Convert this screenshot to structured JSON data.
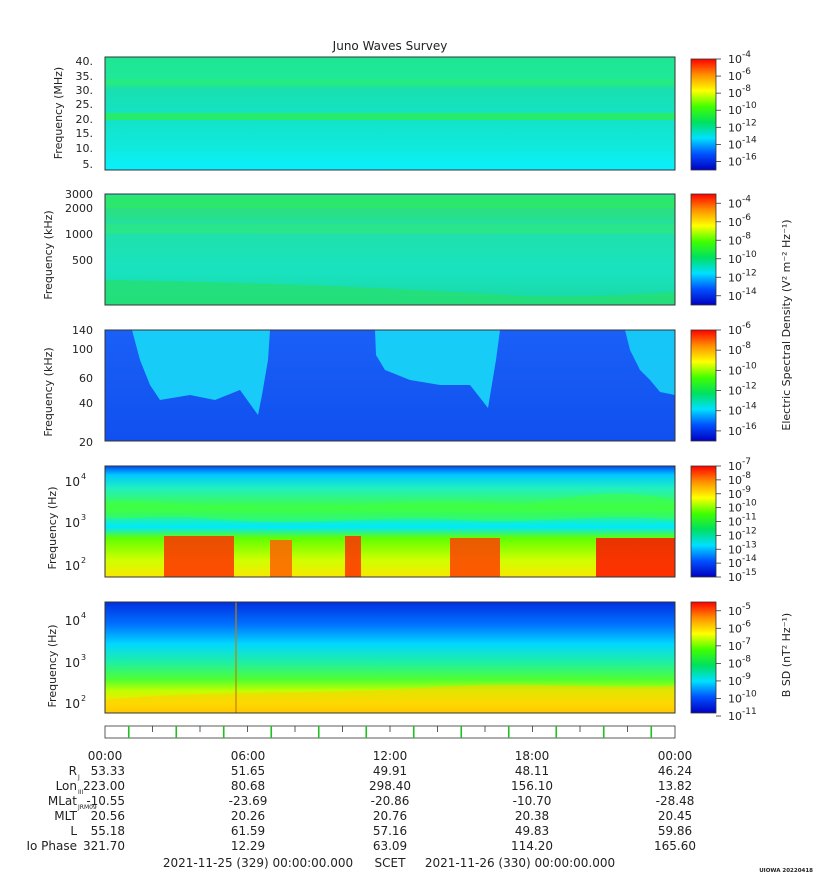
{
  "chart_data": [
    {
      "type": "heatmap",
      "title": "Juno Waves Survey",
      "ylabel": "Frequency (MHz)",
      "yticks": [
        "40.",
        "35.",
        "30.",
        "25.",
        "20.",
        "15.",
        "10.",
        "5."
      ],
      "ylim": [
        3.5,
        41.5
      ],
      "colorbar_ticks": [
        "-4",
        "-6",
        "-8",
        "-10",
        "-12",
        "-14",
        "-16"
      ],
      "colorbar_range": [
        -17,
        -4
      ]
    },
    {
      "type": "heatmap",
      "ylabel": "Frequency (kHz)",
      "yticks": [
        "3000",
        "2000",
        "1000",
        "500"
      ],
      "colorbar_ticks": [
        "-4",
        "-6",
        "-8",
        "-10",
        "-12",
        "-14"
      ],
      "colorbar_range": [
        -15,
        -3
      ],
      "colorbar_label": "Electric Spectral Density (V² m⁻² Hz⁻¹)"
    },
    {
      "type": "heatmap",
      "ylabel": "Frequency (kHz)",
      "yticks": [
        "140",
        "100",
        "60",
        "40",
        "20"
      ],
      "colorbar_ticks": [
        "-6",
        "-8",
        "-10",
        "-12",
        "-14",
        "-16"
      ],
      "colorbar_range": [
        -17,
        -6
      ]
    },
    {
      "type": "heatmap",
      "ylabel": "Frequency (Hz)",
      "yticks_mantissa": [
        "10",
        "10",
        "10"
      ],
      "yticks_exponent": [
        "4",
        "3",
        "2"
      ],
      "colorbar_ticks": [
        "-7",
        "-8",
        "-9",
        "-10",
        "-11",
        "-12",
        "-13",
        "-14",
        "-15"
      ],
      "colorbar_range": [
        -15,
        -7
      ]
    },
    {
      "type": "heatmap",
      "ylabel": "Frequency (Hz)",
      "yticks_mantissa": [
        "10",
        "10",
        "10"
      ],
      "yticks_exponent": [
        "4",
        "3",
        "2"
      ],
      "colorbar_ticks": [
        "-5",
        "-6",
        "-7",
        "-8",
        "-9",
        "-10",
        "-11"
      ],
      "colorbar_range": [
        -11,
        -4.5
      ],
      "colorbar_label": "B SD (nT² Hz⁻¹)"
    }
  ],
  "colorbar_base": "10",
  "colormap": [
    "#0000c0",
    "#0050ff",
    "#00e0ff",
    "#00e060",
    "#40ff00",
    "#ffff00",
    "#ff9000",
    "#ff0000"
  ],
  "time_axis": {
    "labels": [
      "00:00",
      "06:00",
      "12:00",
      "18:00",
      "00:00"
    ]
  },
  "ephemeris": [
    {
      "label": "R",
      "sub": "J",
      "values": [
        "53.33",
        "51.65",
        "49.91",
        "48.11",
        "46.24"
      ]
    },
    {
      "label": "Lon",
      "sub": "III",
      "values": [
        "223.00",
        "80.68",
        "298.40",
        "156.10",
        "13.82"
      ]
    },
    {
      "label": "MLat",
      "sub": "JRM09",
      "values": [
        "-10.55",
        "-23.69",
        "-20.86",
        "-10.70",
        "-28.48"
      ]
    },
    {
      "label": "MLT",
      "sub": "",
      "values": [
        "20.56",
        "20.26",
        "20.76",
        "20.38",
        "20.45"
      ]
    },
    {
      "label": "L",
      "sub": "",
      "values": [
        "55.18",
        "61.59",
        "57.16",
        "49.83",
        "59.86"
      ]
    },
    {
      "label": "Io Phase",
      "sub": "",
      "values": [
        "321.70",
        "12.29",
        "63.09",
        "114.20",
        "165.60"
      ]
    }
  ],
  "footer": {
    "start": "2021-11-25 (329) 00:00:00.000",
    "scet": "SCET",
    "end": "2021-11-26 (330) 00:00:00.000"
  },
  "stamp": "UIOWA 20220418"
}
